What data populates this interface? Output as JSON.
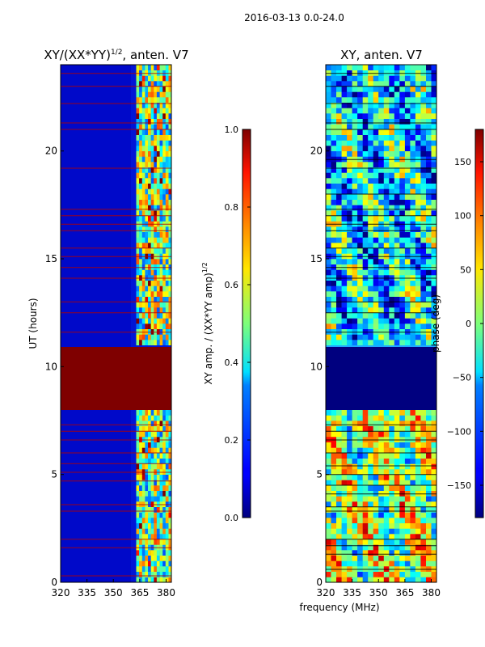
{
  "figure": {
    "suptitle": "2016-03-13 0.0-24.0",
    "shared_xlabel": "frequency (MHz)"
  },
  "chart_data": [
    {
      "type": "heatmap",
      "title_main": "XY/(XX*YY)",
      "title_sup": "1/2",
      "title_tail": ", anten. V7",
      "xlabel": "",
      "ylabel": "UT (hours)",
      "xlim": [
        320,
        383
      ],
      "ylim": [
        0,
        24
      ],
      "xticks": [
        320,
        335,
        350,
        365,
        380
      ],
      "yticks": [
        0,
        5,
        10,
        15,
        20
      ],
      "colormap": "jet",
      "colorbar": {
        "label_main": "XY amp. / (XX*YY amp)",
        "label_sup": "1/2",
        "range": [
          0.0,
          1.0
        ],
        "ticks": [
          "0.0",
          "0.2",
          "0.4",
          "0.6",
          "0.8",
          "1.0"
        ]
      },
      "bands": [
        {
          "name": "low-frequency band",
          "x": [
            320,
            363
          ],
          "value": 0.1
        },
        {
          "name": "high-frequency band",
          "x": [
            363,
            383
          ],
          "value": 0.45
        },
        {
          "name": "no-data block",
          "y": [
            8.0,
            10.9
          ],
          "value": 1.0
        }
      ],
      "flagged_rows_ut": [
        0.3,
        1.6,
        2.0,
        3.3,
        3.6,
        4.7,
        5.1,
        5.5,
        6.0,
        6.6,
        7.0,
        7.3,
        11.6,
        12.5,
        13.0,
        14.1,
        14.6,
        15.1,
        15.5,
        16.3,
        16.6,
        17.0,
        17.3,
        19.2,
        21.0,
        21.3,
        22.2,
        23.0,
        23.6
      ]
    },
    {
      "type": "heatmap",
      "title": "XY, anten. V7",
      "xlabel": "frequency (MHz)",
      "ylabel": "",
      "xlim": [
        320,
        383
      ],
      "ylim": [
        0,
        24
      ],
      "xticks": [
        320,
        335,
        350,
        365,
        380
      ],
      "yticks": [
        0,
        5,
        10,
        15,
        20
      ],
      "colormap": "jet",
      "colorbar": {
        "label": "phase (deg)",
        "range": [
          -180,
          180
        ],
        "ticks": [
          "−150",
          "−100",
          "−50",
          "0",
          "50",
          "100",
          "150"
        ]
      },
      "bands": [
        {
          "name": "no-data block",
          "y": [
            8.0,
            10.9
          ],
          "value": -180
        }
      ],
      "flagged_rows_ut": [
        0.6,
        1.3,
        1.7,
        2.0,
        3.3,
        3.5,
        4.1,
        4.5,
        5.0,
        5.4,
        6.0,
        6.6,
        7.0,
        7.3,
        11.6,
        12.5,
        13.0,
        14.1,
        14.6,
        15.1,
        15.5,
        16.3,
        16.6,
        17.0,
        17.3,
        18.0,
        19.2,
        19.6,
        21.0,
        21.3,
        22.2,
        23.0,
        23.6
      ]
    }
  ]
}
